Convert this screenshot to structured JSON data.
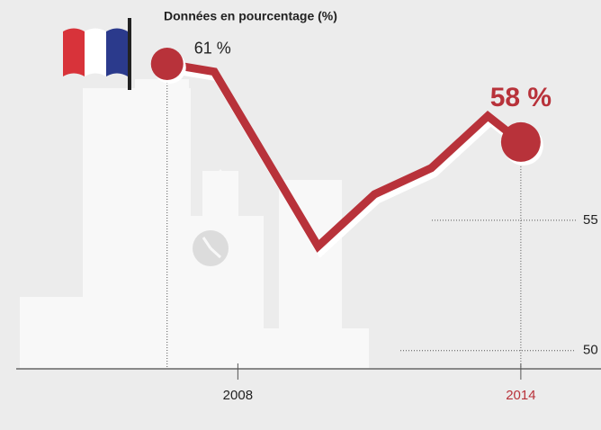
{
  "chart_data": {
    "type": "line",
    "subtitle": "Données en pourcentage (%)",
    "x": [
      2006.5,
      2007.5,
      2009.7,
      2010.9,
      2012.1,
      2013.3,
      2014
    ],
    "series": [
      {
        "name": null,
        "color": "#b8323a",
        "values": [
          61,
          60.7,
          54,
          56,
          57,
          59,
          58
        ],
        "value_labels": [
          "61 %",
          null,
          null,
          null,
          null,
          null,
          "58 %"
        ]
      }
    ],
    "xlim": [
      2003.3,
      2015.7
    ],
    "xticks": [
      2008,
      2014
    ],
    "ylim": [
      49.3,
      62
    ],
    "yticks": [
      50,
      55
    ],
    "grid": true
  }
}
